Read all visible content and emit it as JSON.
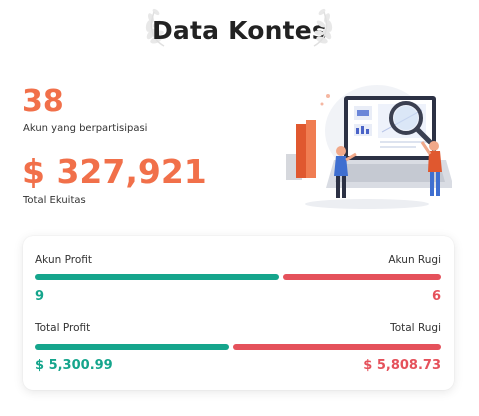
{
  "header": {
    "title": "Data Kontes"
  },
  "stats": {
    "participants_value": "38",
    "participants_label": "Akun yang berpartisipasi",
    "equity_value": "$ 327,921",
    "equity_label": "Total Ekuitas"
  },
  "summary": {
    "accounts": {
      "profit_label": "Akun Profit",
      "loss_label": "Akun Rugi",
      "profit_value": "9",
      "loss_value": "6",
      "profit_share": 0.6
    },
    "totals": {
      "profit_label": "Total Profit",
      "loss_label": "Total Rugi",
      "profit_value": "$ 5,300.99",
      "loss_value": "$ 5,808.73",
      "profit_share": 0.477
    }
  },
  "colors": {
    "accent": "#f1704a",
    "profit": "#15a58c",
    "loss": "#e5515b"
  },
  "icons": {
    "laurel": "laurel-wreath-icon",
    "illustration": "data-analysis-illustration"
  }
}
